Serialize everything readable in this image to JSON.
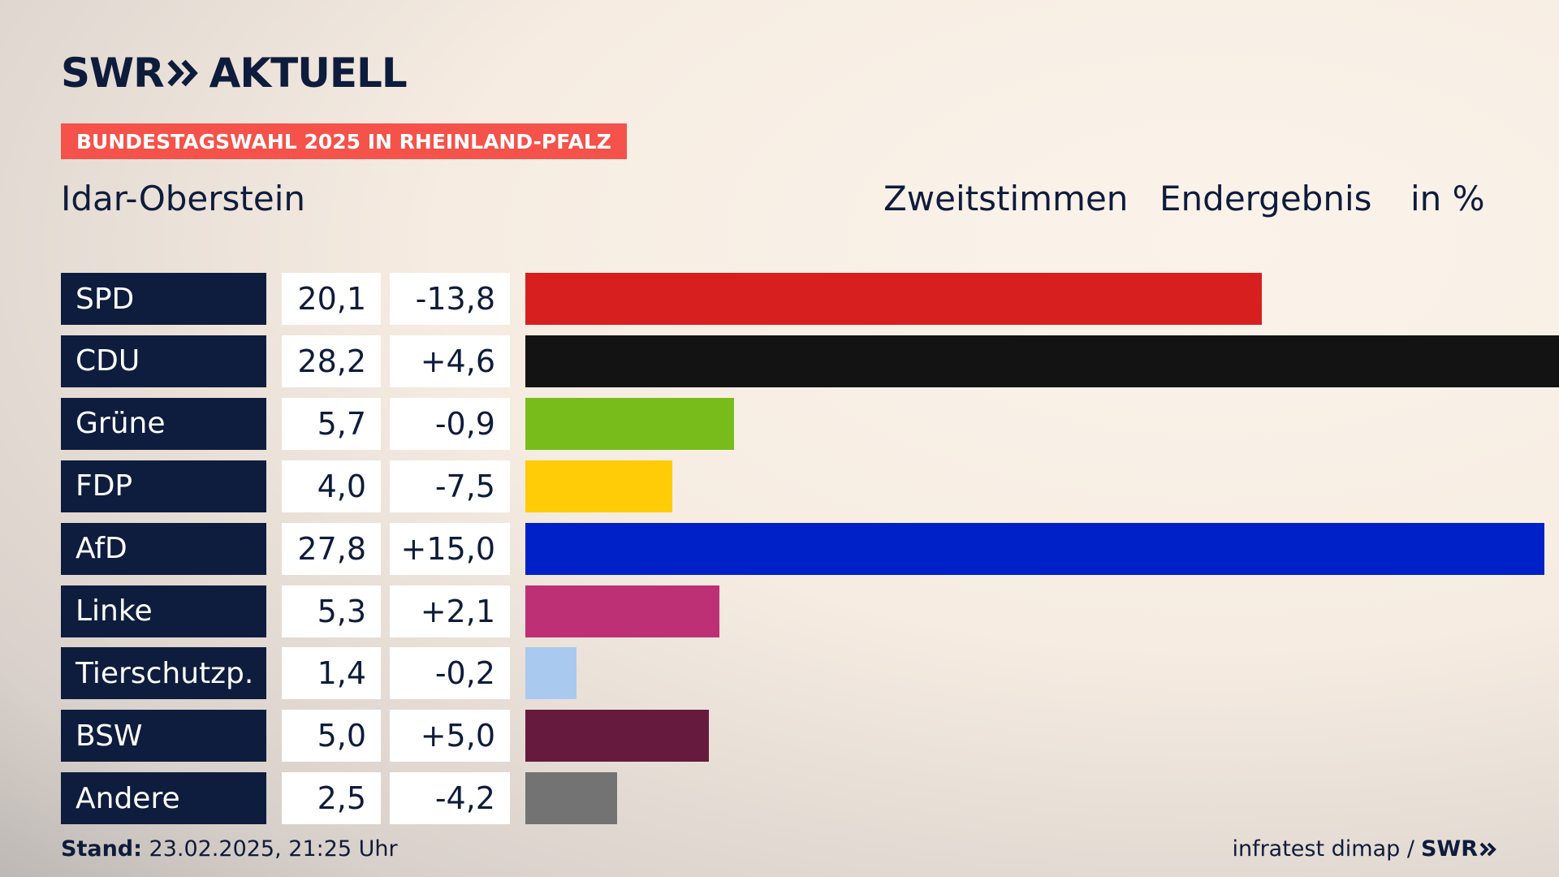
{
  "brand": {
    "logo_left": "SWR",
    "logo_right": "AKTUELL",
    "logo_icon": "double-chevron-right-icon"
  },
  "badge": "BUNDESTAGSWAHL 2025 IN RHEINLAND-PFALZ",
  "header": {
    "region": "Idar-Oberstein",
    "vote_type": "Zweitstimmen",
    "status": "Endergebnis",
    "unit": "in %"
  },
  "chart_data": {
    "type": "bar",
    "orientation": "horizontal",
    "title": "Idar-Oberstein",
    "subtitle": "Zweitstimmen Endergebnis in %",
    "categories": [
      "SPD",
      "CDU",
      "Grüne",
      "FDP",
      "AfD",
      "Linke",
      "Tierschutzp.",
      "BSW",
      "Andere"
    ],
    "values": [
      20.1,
      28.2,
      5.7,
      4.0,
      27.8,
      5.3,
      1.4,
      5.0,
      2.5
    ],
    "value_labels": [
      "20,1",
      "28,2",
      "5,7",
      "4,0",
      "27,8",
      "5,3",
      "1,4",
      "5,0",
      "2,5"
    ],
    "diff_labels": [
      "-13,8",
      "+4,6",
      "-0,9",
      "-7,5",
      "+15,0",
      "+2,1",
      "-0,2",
      "+5,0",
      "-4,2"
    ],
    "diffs": [
      -13.8,
      4.6,
      -0.9,
      -7.5,
      15.0,
      2.1,
      -0.2,
      5.0,
      -4.2
    ],
    "colors": [
      "#d81f20",
      "#131313",
      "#78bc1b",
      "#ffcc07",
      "#0021c7",
      "#bd3075",
      "#a9c9ef",
      "#661a3d",
      "#737373"
    ],
    "xlim": [
      0,
      28.2
    ],
    "grid": false
  },
  "footer": {
    "stand_label": "Stand:",
    "stand_value": "23.02.2025, 21:25 Uhr",
    "source": "infratest dimap /",
    "source_brand": "SWR"
  }
}
